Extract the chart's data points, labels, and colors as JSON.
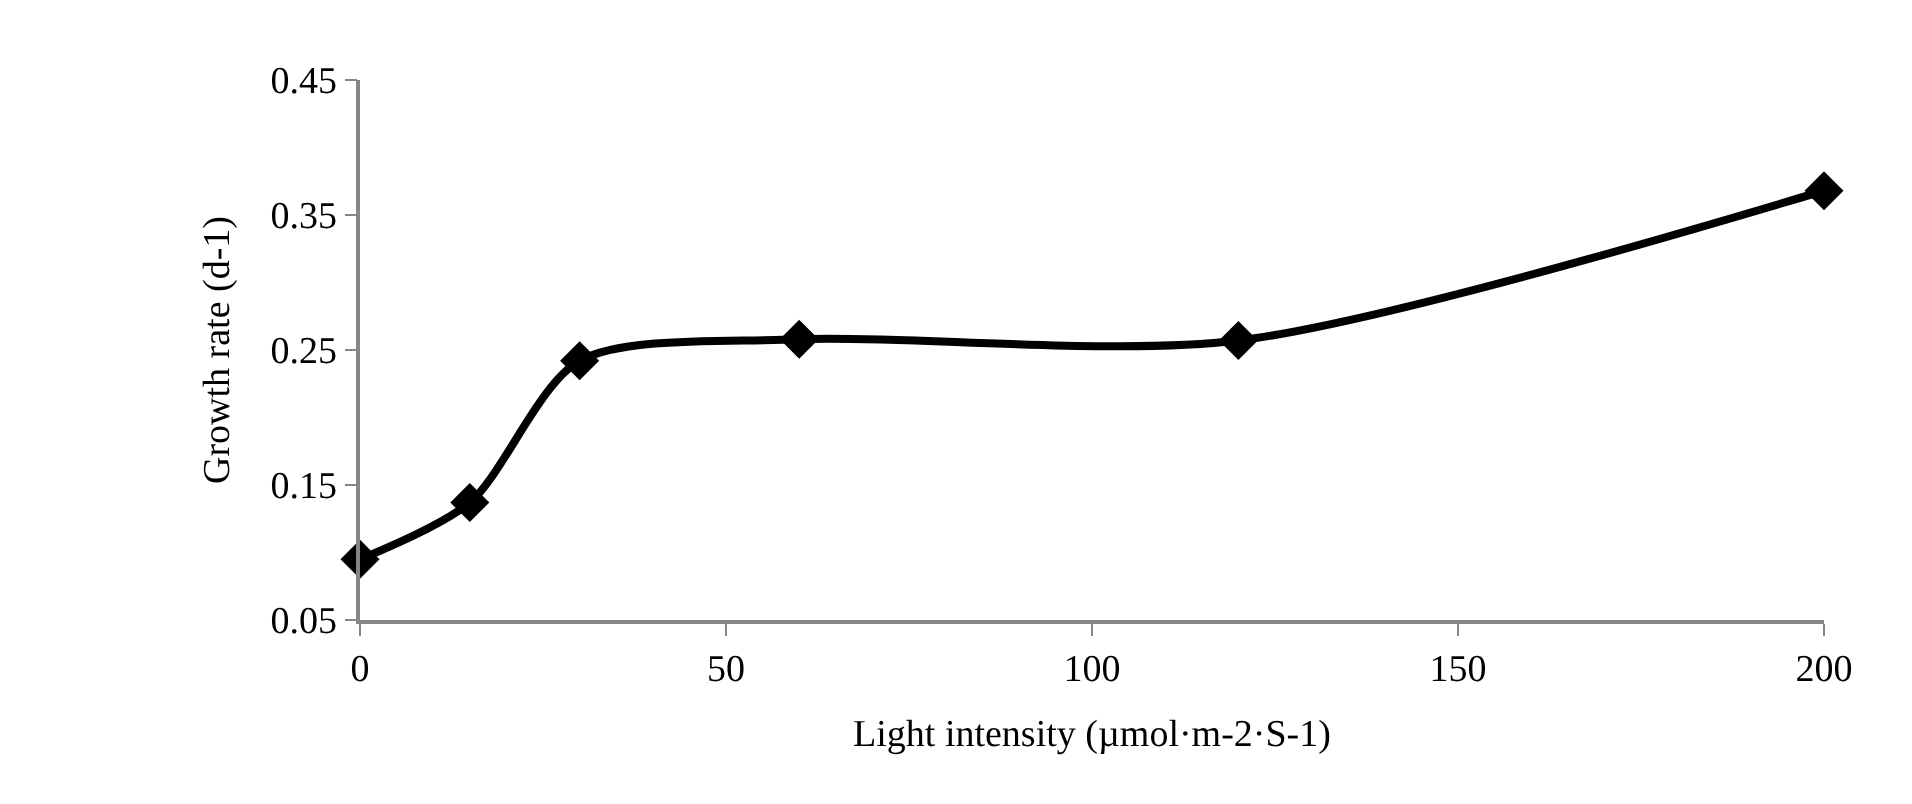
{
  "chart_data": {
    "type": "line",
    "xlabel": "Light intensity (µmol·m-2·S-1)",
    "ylabel": "Growth rate (d-1)",
    "x": [
      0,
      15,
      30,
      60,
      120,
      200
    ],
    "series": [
      {
        "color": "#000000",
        "values": [
          0.095,
          0.137,
          0.242,
          0.258,
          0.257,
          0.368
        ]
      }
    ],
    "xlim": [
      0,
      200
    ],
    "xticks": [
      0,
      50,
      100,
      150,
      200
    ],
    "ylim": [
      0.05,
      0.45
    ],
    "yticks": [
      0.05,
      0.15,
      0.25,
      0.35,
      0.45
    ],
    "marker": "diamond",
    "line_style": "solid"
  }
}
